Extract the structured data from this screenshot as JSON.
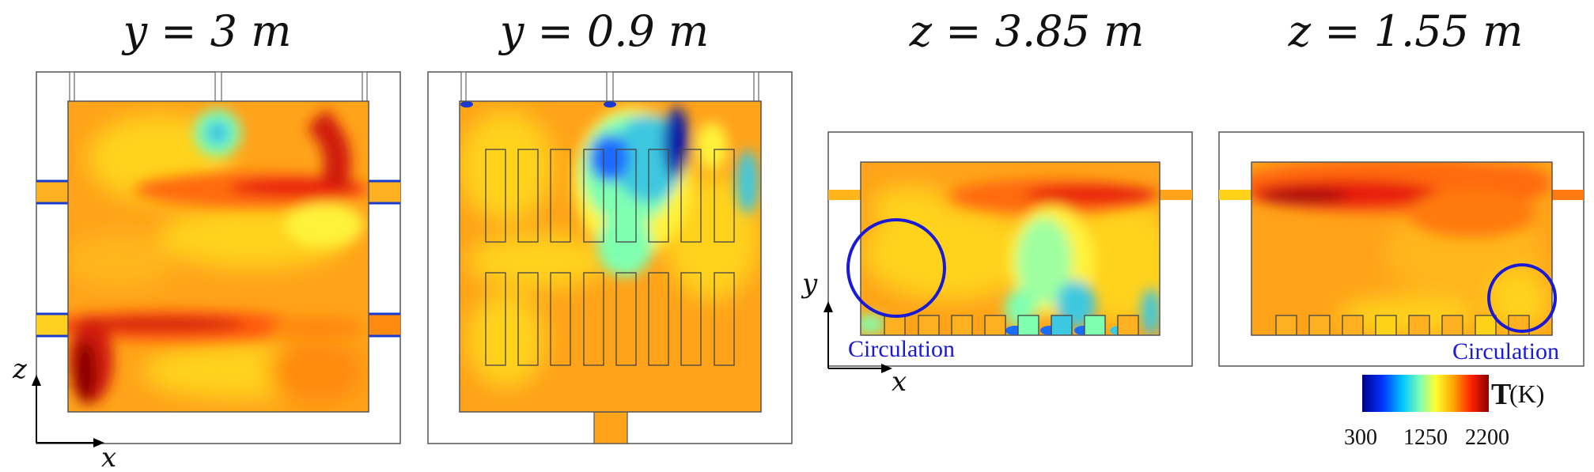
{
  "panels": [
    {
      "title": "y = 3 m"
    },
    {
      "title": "y = 0.9 m"
    },
    {
      "title": "z = 3.85 m"
    },
    {
      "title": "z = 1.55 m"
    }
  ],
  "axes": {
    "xz": {
      "vertical": "z",
      "horizontal": "x"
    },
    "xy": {
      "vertical": "y",
      "horizontal": "x"
    }
  },
  "annotations": {
    "circulation_left": "Circulation",
    "circulation_right": "Circulation"
  },
  "colorbar": {
    "quantity": "T",
    "unit": "(K)",
    "ticks": [
      "300",
      "1250",
      "2200"
    ],
    "min": 300,
    "max": 2200,
    "colors": [
      "#00008b",
      "#0033ff",
      "#00c8ff",
      "#7fffb0",
      "#ffff33",
      "#ffa500",
      "#ff2200",
      "#8b0000"
    ]
  },
  "palette": {
    "base": "#ffa31a",
    "warm": "#ff7a10",
    "hot": "#e81c0c",
    "hottest": "#a30808",
    "mild": "#ffd21a",
    "yellow": "#fff23a",
    "cool": "#47e0d0",
    "cold": "#1a6bff",
    "coldest": "#0b1fa8",
    "annotation": "#1a1ad6"
  }
}
